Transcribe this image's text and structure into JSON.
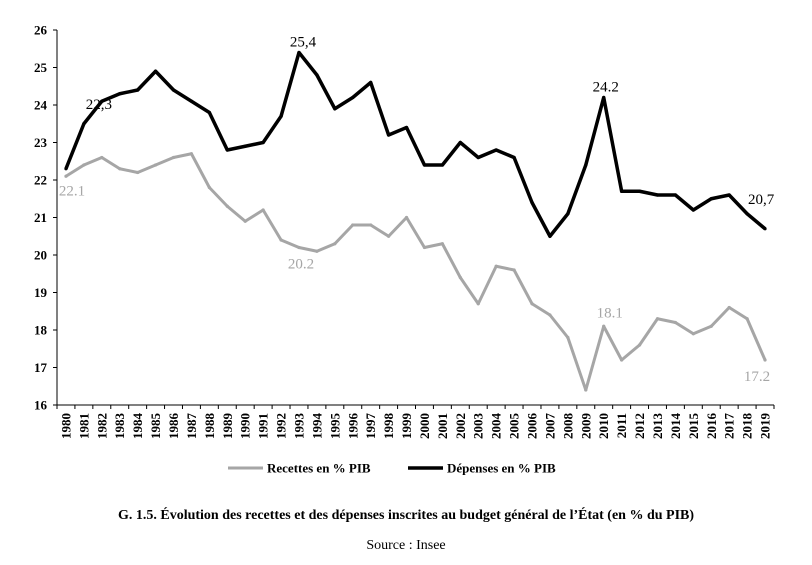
{
  "chart_data": {
    "type": "line",
    "title": "G. 1.5. Évolution des recettes et des dépenses inscrites au budget général de l’État (en % du PIB)",
    "source": "Source : Insee",
    "xlabel": "",
    "ylabel": "",
    "ylim": [
      16,
      26
    ],
    "yticks": [
      "16",
      "17",
      "18",
      "19",
      "20",
      "21",
      "22",
      "23",
      "24",
      "25",
      "26"
    ],
    "x": [
      "1980",
      "1981",
      "1982",
      "1983",
      "1984",
      "1985",
      "1986",
      "1987",
      "1988",
      "1989",
      "1990",
      "1991",
      "1992",
      "1993",
      "1994",
      "1995",
      "1996",
      "1997",
      "1998",
      "1999",
      "2000",
      "2001",
      "2002",
      "2003",
      "2004",
      "2005",
      "2006",
      "2007",
      "2008",
      "2009",
      "2010",
      "2011",
      "2012",
      "2013",
      "2014",
      "2015",
      "2016",
      "2017",
      "2018",
      "2019"
    ],
    "series": [
      {
        "name": "Recettes en % PIB",
        "color": "#a6a6a6",
        "values": [
          22.1,
          22.4,
          22.6,
          22.3,
          22.2,
          22.4,
          22.6,
          22.7,
          21.8,
          21.3,
          20.9,
          21.2,
          20.4,
          20.2,
          20.1,
          20.3,
          20.8,
          20.8,
          20.5,
          21.0,
          20.2,
          20.3,
          19.4,
          18.7,
          19.7,
          19.6,
          18.7,
          18.4,
          17.8,
          16.4,
          18.1,
          17.2,
          17.6,
          18.3,
          18.2,
          17.9,
          18.1,
          18.6,
          18.3,
          17.2
        ]
      },
      {
        "name": "Dépenses en % PIB",
        "color": "#000000",
        "values": [
          22.3,
          23.5,
          24.1,
          24.3,
          24.4,
          24.9,
          24.4,
          24.1,
          23.8,
          22.8,
          22.9,
          23.0,
          23.7,
          25.4,
          24.8,
          23.9,
          24.2,
          24.6,
          23.2,
          23.4,
          22.4,
          22.4,
          23.0,
          22.6,
          22.8,
          22.6,
          21.4,
          20.5,
          21.1,
          22.4,
          24.2,
          21.7,
          21.7,
          21.6,
          21.6,
          21.2,
          21.5,
          21.6,
          21.1,
          20.7
        ]
      }
    ],
    "annotations": [
      {
        "series": 1,
        "index": 1,
        "text": "22,3"
      },
      {
        "series": 1,
        "index": 13,
        "text": "25,4"
      },
      {
        "series": 1,
        "index": 30,
        "text": "24.2"
      },
      {
        "series": 1,
        "index": 38,
        "text": "20,7"
      },
      {
        "series": 0,
        "index": 0,
        "text": "22.1"
      },
      {
        "series": 0,
        "index": 13,
        "text": "20.2"
      },
      {
        "series": 0,
        "index": 30,
        "text": "18.1"
      },
      {
        "series": 0,
        "index": 39,
        "text": "17.2"
      }
    ],
    "legend_position": "bottom"
  }
}
